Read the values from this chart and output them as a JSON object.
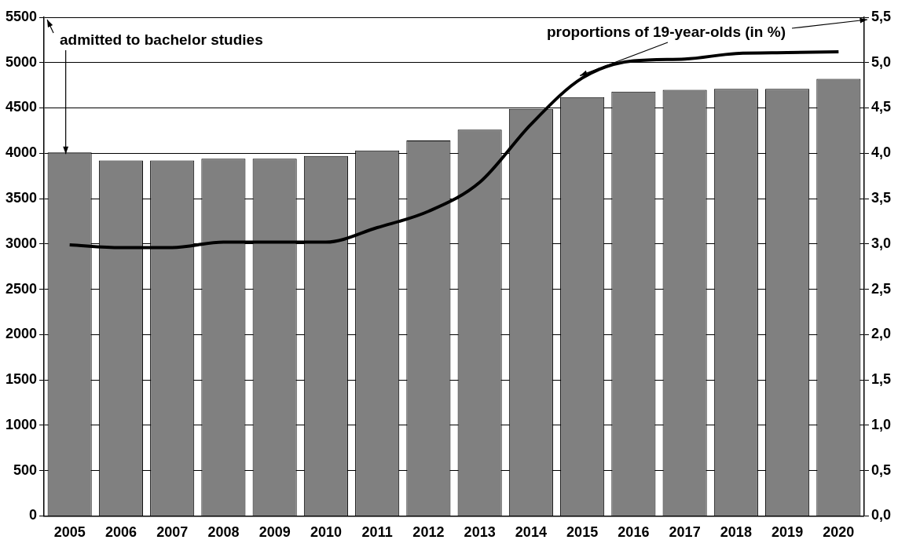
{
  "chart_data": {
    "type": "bar",
    "categories": [
      "2005",
      "2006",
      "2007",
      "2008",
      "2009",
      "2010",
      "2011",
      "2012",
      "2013",
      "2014",
      "2015",
      "2016",
      "2017",
      "2018",
      "2019",
      "2020"
    ],
    "series": [
      {
        "color": "#808080",
        "values": [
          4010,
          3920,
          3920,
          3940,
          3940,
          3970,
          4030,
          4140,
          4260,
          4490,
          4620,
          4680,
          4700,
          4710,
          4710,
          4820
        ]
      },
      {
        "type": "line",
        "axis": "y2",
        "color": "#000000",
        "values": [
          2.99,
          2.96,
          2.96,
          3.02,
          3.02,
          3.02,
          3.18,
          3.36,
          3.68,
          4.32,
          4.83,
          5.02,
          5.04,
          5.1,
          5.11,
          5.12
        ]
      }
    ],
    "annotations": [
      {
        "text": "admitted to bachelor studies",
        "x": "2005",
        "y": 4010
      },
      {
        "text": "proportions of 19-year-olds (in %)",
        "x": "2015",
        "y": 4830
      }
    ],
    "ylim": [
      0,
      5500
    ],
    "yticks": [
      0,
      500,
      1000,
      1500,
      2000,
      2500,
      3000,
      3500,
      4000,
      4500,
      5000,
      5500
    ],
    "y2lim": [
      0,
      5.5
    ],
    "y2ticks": [
      {
        "value": 0,
        "label": "0,0"
      },
      {
        "value": 0.5,
        "label": "0,5"
      },
      {
        "value": 1,
        "label": "1,0"
      },
      {
        "value": 1.5,
        "label": "1,5"
      },
      {
        "value": 2,
        "label": "2,0"
      },
      {
        "value": 2.5,
        "label": "2,5"
      },
      {
        "value": 3,
        "label": "3,0"
      },
      {
        "value": 3.5,
        "label": "3,5"
      },
      {
        "value": 4,
        "label": "4,0"
      },
      {
        "value": 4.5,
        "label": "4,5"
      },
      {
        "value": 5,
        "label": "5,0"
      },
      {
        "value": 5.5,
        "label": "5,5"
      }
    ],
    "grid": "y",
    "legend": false,
    "marker": "none",
    "line_style": "solid"
  }
}
